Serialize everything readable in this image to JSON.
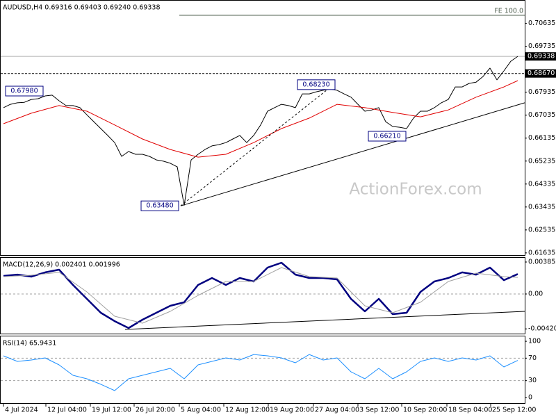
{
  "chart_data": [
    {
      "type": "line",
      "title": "AUDUSD,H4  0.69316 0.69403 0.69240 0.69338",
      "watermark": "ActionForex.com",
      "xlim": [
        -0.5,
        75
      ],
      "ylim": [
        0.6155,
        0.7155
      ],
      "yticks": [
        0.70635,
        0.69735,
        0.67935,
        0.67035,
        0.66135,
        0.65235,
        0.64335,
        0.63435,
        0.62535,
        0.61635
      ],
      "x": [
        0,
        1,
        2,
        3,
        4,
        5,
        6,
        7,
        8,
        9,
        10,
        11,
        12,
        13,
        14,
        15,
        16,
        17,
        18,
        19,
        20,
        21,
        22,
        23,
        24,
        25,
        26,
        27,
        28,
        29,
        30,
        31,
        32,
        33,
        34,
        35,
        36,
        37,
        38,
        39,
        40,
        41,
        42,
        43,
        44,
        45,
        46,
        47,
        48,
        49,
        50,
        51,
        52,
        53,
        54,
        55,
        56,
        57,
        58,
        59,
        60,
        61,
        62,
        63,
        64,
        65,
        66,
        67,
        68,
        69,
        70,
        71,
        72,
        73,
        74
      ],
      "series": [
        {
          "color": "#000000",
          "values": [
            0.6733,
            0.6746,
            0.6752,
            0.6754,
            0.6765,
            0.6768,
            0.6779,
            0.6782,
            0.676,
            0.6741,
            0.6741,
            0.6733,
            0.6705,
            0.6678,
            0.6651,
            0.6624,
            0.6596,
            0.6542,
            0.6561,
            0.655,
            0.655,
            0.6542,
            0.6528,
            0.6523,
            0.6515,
            0.6501,
            0.635,
            0.6528,
            0.655,
            0.6569,
            0.6583,
            0.6588,
            0.6596,
            0.661,
            0.6624,
            0.6596,
            0.6624,
            0.6665,
            0.6719,
            0.6733,
            0.6746,
            0.6741,
            0.6733,
            0.6787,
            0.6787,
            0.6795,
            0.6801,
            0.6806,
            0.6801,
            0.6787,
            0.6774,
            0.6746,
            0.6719,
            0.6724,
            0.6733,
            0.6678,
            0.6659,
            0.6656,
            0.6651,
            0.6692,
            0.6719,
            0.6719,
            0.6733,
            0.6752,
            0.6765,
            0.6814,
            0.6814,
            0.6828,
            0.6833,
            0.6855,
            0.6888,
            0.6842,
            0.6877,
            0.6915,
            0.6934
          ]
        },
        {
          "color": "#e00000",
          "x": [
            0,
            4,
            8,
            12,
            16,
            20,
            24,
            28,
            32,
            36,
            40,
            44,
            48,
            52,
            56,
            60,
            64,
            68,
            72,
            74
          ],
          "values": [
            0.667,
            0.6711,
            0.6741,
            0.6719,
            0.6665,
            0.661,
            0.6569,
            0.6539,
            0.655,
            0.6596,
            0.6651,
            0.6692,
            0.6746,
            0.6733,
            0.6714,
            0.6697,
            0.6724,
            0.6774,
            0.6814,
            0.6839
          ]
        },
        {
          "color": "#000000",
          "x": [
            25.5,
            75
          ],
          "values": [
            0.6348,
            0.6752
          ]
        },
        {
          "color": "#000000",
          "style": "dashed",
          "x": [
            25.5,
            47.5
          ],
          "values": [
            0.6348,
            0.6823
          ]
        }
      ],
      "fe_line": {
        "label": "FE 100.0",
        "value": 0.7095,
        "x": 25.3
      },
      "price_lines": [
        {
          "value": 0.69338,
          "label": "0.69338",
          "color": "#b0b0b0",
          "style": "solid"
        },
        {
          "value": 0.6867,
          "label": "0.68670",
          "color": "#000000",
          "style": "dashed"
        }
      ],
      "annotations": [
        {
          "label": "0.67980",
          "value": 0.6798,
          "x": 3
        },
        {
          "label": "0.68230",
          "value": 0.6823,
          "x": 45
        },
        {
          "label": "0.66210",
          "value": 0.6621,
          "x": 55.2
        },
        {
          "label": "0.63480",
          "value": 0.6348,
          "x": 22.5
        }
      ]
    },
    {
      "type": "line",
      "title": "MACD(12,26,9) 0.002401 0.001996",
      "xlim": [
        -0.5,
        75
      ],
      "ylim": [
        -0.004773,
        0.004438
      ],
      "yticks": [
        0.003852,
        {
          "value": 0,
          "label": "0.00"
        },
        -0.004204
      ],
      "dashed_levels": [
        0
      ],
      "series": [
        {
          "color": "#000080",
          "width": 2.5,
          "x": [
            0,
            2,
            4,
            6,
            8,
            10,
            12,
            14,
            16,
            18,
            20,
            22,
            24,
            26,
            28,
            30,
            32,
            34,
            36,
            38,
            40,
            42,
            44,
            46,
            48,
            50,
            52,
            54,
            56,
            58,
            60,
            62,
            64,
            66,
            68,
            70,
            72,
            74
          ],
          "values": [
            0.00218,
            0.00234,
            0.00209,
            0.0026,
            0.00293,
            0.00109,
            -0.00059,
            -0.00226,
            -0.00327,
            -0.0041,
            -0.0031,
            -0.00226,
            -0.00142,
            -0.001,
            0.00109,
            0.00193,
            0.00109,
            0.00193,
            0.00151,
            0.00318,
            0.00377,
            0.00234,
            0.00193,
            0.00193,
            0.00176,
            -0.00059,
            -0.00209,
            -0.00059,
            -0.00243,
            -0.00226,
            0.00025,
            0.00151,
            0.00193,
            0.0026,
            0.00234,
            0.00318,
            0.00167,
            0.0024
          ]
        },
        {
          "color": "#a0a0a0",
          "x": [
            0,
            4,
            8,
            12,
            16,
            20,
            24,
            28,
            32,
            36,
            40,
            44,
            48,
            52,
            56,
            60,
            64,
            68,
            72,
            74
          ],
          "values": [
            0.00209,
            0.00226,
            0.0026,
            0.00025,
            -0.00268,
            -0.00352,
            -0.00209,
            -0.00017,
            0.00151,
            0.00151,
            0.00318,
            0.00209,
            0.00193,
            -0.00142,
            -0.00226,
            -0.001,
            0.00151,
            0.00251,
            0.00209,
            0.002
          ]
        },
        {
          "color": "#000000",
          "x": [
            17.5,
            75
          ],
          "values": [
            -0.00427,
            -0.00209
          ]
        }
      ]
    },
    {
      "type": "line",
      "title": "RSI(14) 65.9431",
      "xlim": [
        -0.5,
        75
      ],
      "ylim": [
        -10,
        110
      ],
      "yticks": [
        100,
        70,
        30,
        0
      ],
      "dashed_levels": [
        70,
        30
      ],
      "xticks": [
        {
          "value": 0,
          "label": "4 Jul 2024"
        },
        {
          "value": 6.1,
          "label": "12 Jul 04:00"
        },
        {
          "value": 12.5,
          "label": "19 Jul 12:00"
        },
        {
          "value": 18.8,
          "label": "26 Jul 20:00"
        },
        {
          "value": 25.3,
          "label": "5 Aug 04:00"
        },
        {
          "value": 31.7,
          "label": "12 Aug 12:00"
        },
        {
          "value": 38.1,
          "label": "19 Aug 20:00"
        },
        {
          "value": 44.6,
          "label": "27 Aug 04:00"
        },
        {
          "value": 51,
          "label": "3 Sep 12:00"
        },
        {
          "value": 57.3,
          "label": "10 Sep 20:00"
        },
        {
          "value": 63.8,
          "label": "18 Sep 04:00"
        },
        {
          "value": 70.1,
          "label": "25 Sep 12:00"
        }
      ],
      "series": [
        {
          "color": "#1e90ff",
          "x": [
            0,
            2,
            4,
            6,
            8,
            10,
            12,
            14,
            16,
            18,
            20,
            22,
            24,
            26,
            28,
            30,
            32,
            34,
            36,
            38,
            40,
            42,
            44,
            46,
            48,
            50,
            52,
            54,
            56,
            58,
            60,
            62,
            64,
            66,
            68,
            70,
            72,
            74
          ],
          "values": [
            74.1,
            64.2,
            66.7,
            70.4,
            58.0,
            39.5,
            33.3,
            23.5,
            12.3,
            33.3,
            39.5,
            45.7,
            51.9,
            33.3,
            58.0,
            64.2,
            70.4,
            66.7,
            76.5,
            74.1,
            70.4,
            61.7,
            76.5,
            66.7,
            70.4,
            45.7,
            33.3,
            51.9,
            33.3,
            45.7,
            64.2,
            70.4,
            64.2,
            70.4,
            66.7,
            74.1,
            54.3,
            65.9
          ]
        }
      ]
    }
  ]
}
